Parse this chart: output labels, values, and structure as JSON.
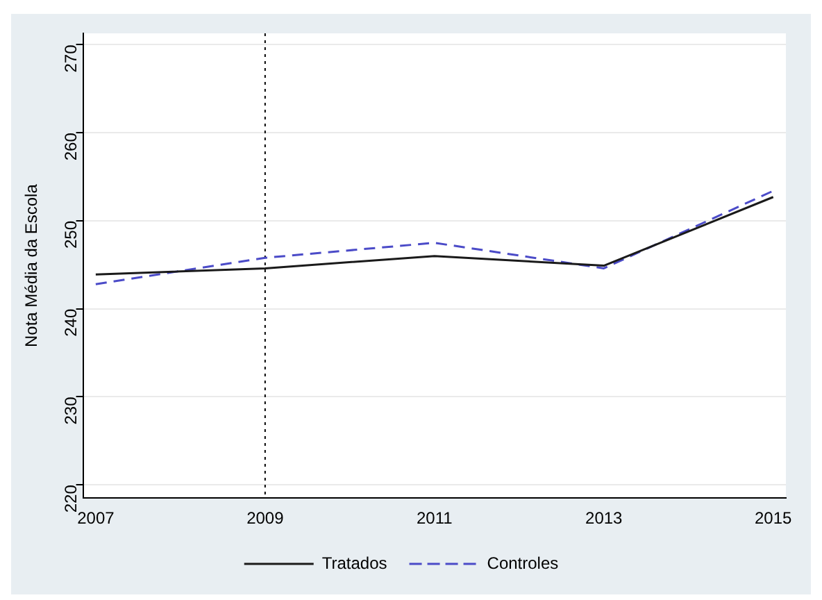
{
  "chart_data": {
    "type": "line",
    "ylabel": "Nota Média da Escola",
    "x": [
      2007,
      2009,
      2011,
      2013,
      2015
    ],
    "series": [
      {
        "name": "Tratados",
        "color": "#1a1a1a",
        "line_style": "solid",
        "values": [
          243.9,
          244.6,
          246.0,
          244.9,
          252.7
        ]
      },
      {
        "name": "Controles",
        "color": "#4b4bc8",
        "line_style": "dashed",
        "values": [
          242.8,
          245.8,
          247.5,
          244.6,
          253.4
        ]
      }
    ],
    "xlim": [
      2006.85,
      2015.15
    ],
    "xticks": [
      2007,
      2009,
      2011,
      2013,
      2015
    ],
    "ylim": [
      218.5,
      271.3
    ],
    "yticks": [
      220,
      230,
      240,
      250,
      260,
      270
    ],
    "ref_lines": [
      {
        "axis": "x",
        "value": 2009,
        "color": "#000000",
        "line_style": "dotted"
      }
    ],
    "grid": "y",
    "legend": "bottom",
    "marker": "none"
  }
}
